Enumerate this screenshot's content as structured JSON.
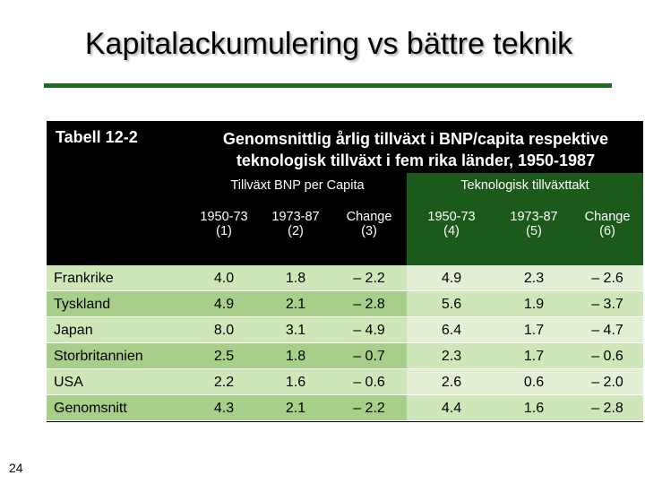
{
  "slide": {
    "title": "Kapitalackumulering vs bättre teknik",
    "page_number": "24"
  },
  "table": {
    "label": "Tabell 12-2",
    "caption": "Genomsnittlig årlig tillväxt i BNP/capita respektive teknologisk tillväxt i fem rika länder, 1950-1987",
    "groups": [
      "Tillväxt BNP per Capita",
      "Teknologisk tillväxttakt"
    ],
    "columns": [
      {
        "line1": "1950-73",
        "line2": "(1)"
      },
      {
        "line1": "1973-87",
        "line2": "(2)"
      },
      {
        "line1": "Change",
        "line2": "(3)"
      },
      {
        "line1": "1950-73",
        "line2": "(4)"
      },
      {
        "line1": "1973-87",
        "line2": "(5)"
      },
      {
        "line1": "Change",
        "line2": "(6)"
      }
    ],
    "rows": [
      {
        "country": "Frankrike",
        "values": [
          "4.0",
          "1.8",
          "– 2.2",
          "4.9",
          "2.3",
          "– 2.6"
        ]
      },
      {
        "country": "Tyskland",
        "values": [
          "4.9",
          "2.1",
          "– 2.8",
          "5.6",
          "1.9",
          "– 3.7"
        ]
      },
      {
        "country": "Japan",
        "values": [
          "8.0",
          "3.1",
          "– 4.9",
          "6.4",
          "1.7",
          "– 4.7"
        ]
      },
      {
        "country": "Storbritannien",
        "values": [
          "2.5",
          "1.8",
          "– 0.7",
          "2.3",
          "1.7",
          "– 0.6"
        ]
      },
      {
        "country": "USA",
        "values": [
          "2.2",
          "1.6",
          "– 0.6",
          "2.6",
          "0.6",
          "– 2.0"
        ]
      },
      {
        "country": "Genomsnitt",
        "values": [
          "4.3",
          "2.1",
          "– 2.2",
          "4.4",
          "1.6",
          "– 2.8"
        ]
      }
    ]
  },
  "colors": {
    "title_rule": "#1f6b1f",
    "header_dark": "#000000",
    "header_green": "#1c5a1c",
    "row_light": "#cfe6b8",
    "row_mid": "#a8cf8a",
    "row_pale": "#e3f0d6"
  }
}
